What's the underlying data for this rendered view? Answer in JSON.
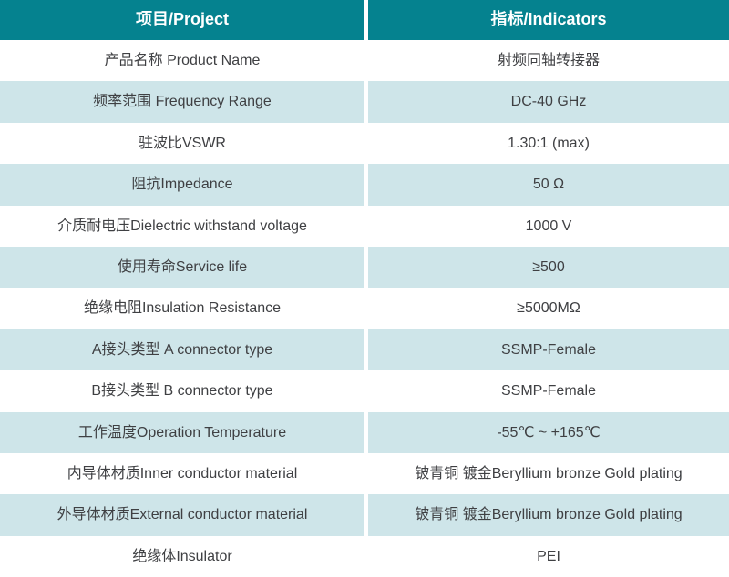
{
  "table": {
    "columns": [
      {
        "label": "项目/Project"
      },
      {
        "label": "指标/Indicators"
      }
    ],
    "rows": [
      {
        "project": "产品名称 Product Name",
        "indicator": "射频同轴转接器"
      },
      {
        "project": "频率范围 Frequency Range",
        "indicator": "DC-40 GHz"
      },
      {
        "project": "驻波比VSWR",
        "indicator": "1.30:1 (max)"
      },
      {
        "project": "阻抗Impedance",
        "indicator": "50 Ω"
      },
      {
        "project": "介质耐电压Dielectric withstand voltage",
        "indicator": "1000 V"
      },
      {
        "project": "使用寿命Service life",
        "indicator": "≥500"
      },
      {
        "project": "绝缘电阻Insulation Resistance",
        "indicator": "≥5000MΩ"
      },
      {
        "project": "A接头类型 A connector type",
        "indicator": "SSMP-Female"
      },
      {
        "project": "B接头类型 B connector type",
        "indicator": "SSMP-Female"
      },
      {
        "project": "工作温度Operation Temperature",
        "indicator": "-55℃ ~ +165℃"
      },
      {
        "project": "内导体材质Inner conductor material",
        "indicator": "铍青铜 镀金Beryllium bronze Gold plating"
      },
      {
        "project": "外导体材质External conductor material",
        "indicator": "铍青铜 镀金Beryllium bronze Gold plating"
      },
      {
        "project": "绝缘体Insulator",
        "indicator": "PEI"
      }
    ],
    "colors": {
      "header_bg": "#05828F",
      "header_text": "#FFFFFF",
      "row_bg": "#FFFFFF",
      "row_alt_bg": "#CEE5E9",
      "text": "#3F4043",
      "divider": "#FFFFFF"
    }
  }
}
